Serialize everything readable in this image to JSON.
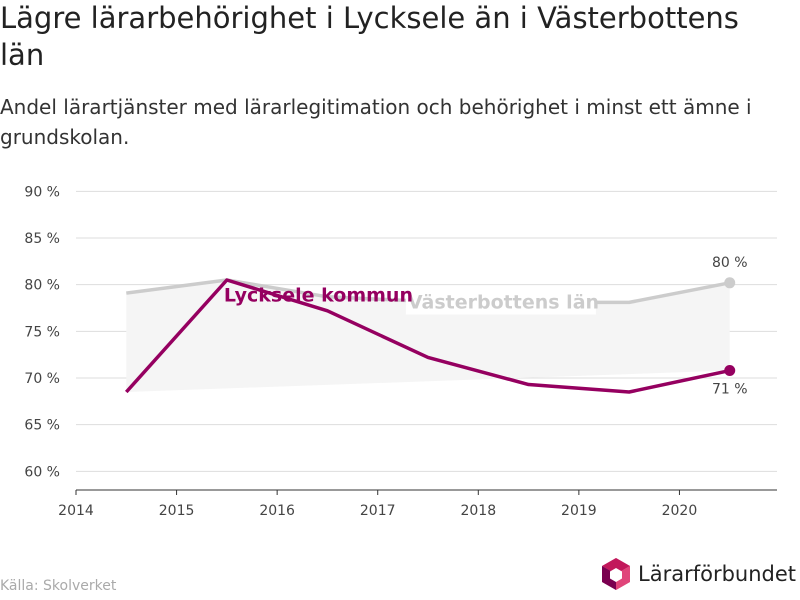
{
  "header": {
    "title": "Lägre lärarbehörighet i Lycksele än i Västerbottens län",
    "subtitle": "Andel lärartjänster med lärarlegitimation och behörighet i minst ett ämne i grundskolan."
  },
  "footer": {
    "source": "Källa: Skolverket",
    "logo_text": "Lärarförbundet",
    "logo_icon": "cube-logo-icon"
  },
  "chart_data": {
    "type": "line",
    "title": "Lägre lärarbehörighet i Lycksele än i Västerbottens län",
    "subtitle": "Andel lärartjänster med lärarlegitimation och behörighet i minst ett ämne i grundskolan.",
    "x_tick_labels": [
      "2014",
      "2015",
      "2016",
      "2017",
      "2018",
      "2019",
      "2020"
    ],
    "y_tick_labels": [
      "60 %",
      "65 %",
      "70 %",
      "75 %",
      "80 %",
      "85 %",
      "90 %"
    ],
    "xlim": [
      2014,
      2020.97
    ],
    "ylim": [
      58,
      91
    ],
    "grid": true,
    "series": [
      {
        "name": "Västerbottens län",
        "color": "#cccccc",
        "x": [
          2014.5,
          2015.5,
          2016.5,
          2017.5,
          2018.5,
          2019.5,
          2020.5
        ],
        "values": [
          79.1,
          80.5,
          78.7,
          78.2,
          78.1,
          78.1,
          80.2
        ],
        "end_label": "80 %"
      },
      {
        "name": "Lycksele kommun",
        "color": "#950060",
        "x": [
          2014.5,
          2015.5,
          2016.5,
          2017.5,
          2018.5,
          2019.5,
          2020.5
        ],
        "values": [
          68.5,
          80.5,
          77.2,
          72.2,
          69.3,
          68.5,
          70.8
        ],
        "end_label": "71 %"
      }
    ]
  }
}
